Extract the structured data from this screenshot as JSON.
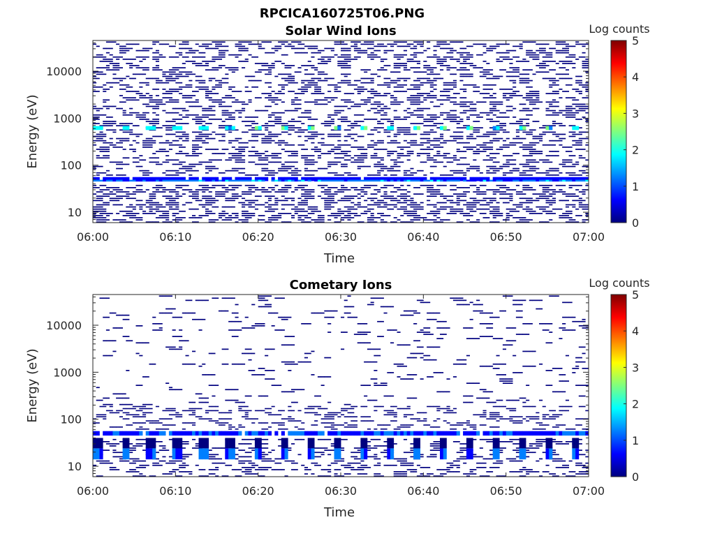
{
  "figure_title": "RPCICA160725T06.PNG",
  "colormap": [
    "#00007f",
    "#0000ff",
    "#007fff",
    "#00ffff",
    "#7fff7f",
    "#ffff00",
    "#ff7f00",
    "#ff0000",
    "#7f0000"
  ],
  "chart_data": [
    {
      "type": "heatmap",
      "title": "Solar Wind Ions",
      "xlabel": "Time",
      "ylabel": "Energy (eV)",
      "x_ticks": [
        "06:00",
        "06:10",
        "06:20",
        "06:30",
        "06:40",
        "06:50",
        "07:00"
      ],
      "x_range_min": [
        0,
        60
      ],
      "y_ticks": [
        "10",
        "100",
        "1000",
        "10000"
      ],
      "y_range_ev": [
        6,
        45000
      ],
      "y_scale": "log",
      "colorbar": {
        "label": "Log counts",
        "ticks": [
          "0",
          "1",
          "2",
          "3",
          "4",
          "5"
        ],
        "range": [
          0,
          5
        ]
      },
      "bands": [
        {
          "e_lo": 46,
          "e_hi": 56,
          "level": 0.6,
          "fill": "continuous"
        },
        {
          "e_lo": 45,
          "e_hi": 49,
          "level": 1.2,
          "fill": "continuous"
        },
        {
          "e_lo": 560,
          "e_hi": 680,
          "level": 2.0,
          "fill": "periodic",
          "period_min": 3.2
        }
      ],
      "scatter": [
        {
          "e_lo": 6,
          "e_hi": 40,
          "density": 0.35,
          "level": 0.1
        },
        {
          "e_lo": 60,
          "e_hi": 45000,
          "density": 0.22,
          "level": 0.1
        }
      ]
    },
    {
      "type": "heatmap",
      "title": "Cometary Ions",
      "xlabel": "Time",
      "ylabel": "Energy (eV)",
      "x_ticks": [
        "06:00",
        "06:10",
        "06:20",
        "06:30",
        "06:40",
        "06:50",
        "07:00"
      ],
      "x_range_min": [
        0,
        60
      ],
      "y_ticks": [
        "10",
        "100",
        "1000",
        "10000"
      ],
      "y_range_ev": [
        6,
        45000
      ],
      "y_scale": "log",
      "colorbar": {
        "label": "Log counts",
        "ticks": [
          "0",
          "1",
          "2",
          "3",
          "4",
          "5"
        ],
        "range": [
          0,
          5
        ]
      },
      "bands": [
        {
          "e_lo": 45,
          "e_hi": 56,
          "level": 0.8,
          "fill": "continuous"
        },
        {
          "e_lo": 14,
          "e_hi": 24,
          "level": 1.0,
          "fill": "periodic",
          "period_min": 3.2
        },
        {
          "e_lo": 24,
          "e_hi": 40,
          "level": 0.2,
          "fill": "periodic",
          "period_min": 3.2
        }
      ],
      "scatter": [
        {
          "e_lo": 6,
          "e_hi": 40,
          "density": 0.18,
          "level": 0.1
        },
        {
          "e_lo": 60,
          "e_hi": 200,
          "density": 0.15,
          "level": 0.1
        },
        {
          "e_lo": 200,
          "e_hi": 45000,
          "density": 0.04,
          "level": 0.1
        }
      ]
    }
  ]
}
